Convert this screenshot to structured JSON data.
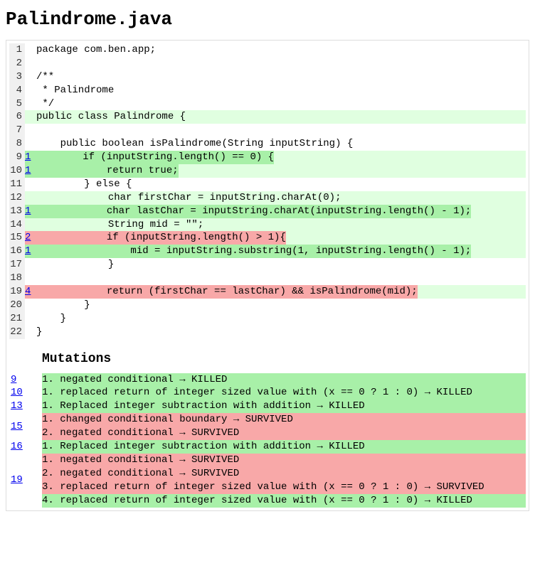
{
  "title": "Palindrome.java",
  "mutationsHeading": "Mutations",
  "colors": {
    "killedBg": "#a8f0a8",
    "survivedBg": "#f8a8a8",
    "coveredBg": "#e0ffe0",
    "noneBg": "#ffffff",
    "linenoBg": "#f0f0f0",
    "link": "#0000ee"
  },
  "codeLines": [
    {
      "n": 1,
      "mut": "",
      "bg": "none",
      "code": "package com.ben.app;"
    },
    {
      "n": 2,
      "mut": "",
      "bg": "none",
      "code": ""
    },
    {
      "n": 3,
      "mut": "",
      "bg": "none",
      "code": "/**"
    },
    {
      "n": 4,
      "mut": "",
      "bg": "none",
      "code": " * Palindrome"
    },
    {
      "n": 5,
      "mut": "",
      "bg": "none",
      "code": " */"
    },
    {
      "n": 6,
      "mut": "",
      "bg": "covered",
      "code": "public class Palindrome {"
    },
    {
      "n": 7,
      "mut": "",
      "bg": "none",
      "code": ""
    },
    {
      "n": 8,
      "mut": "",
      "bg": "none",
      "code": "    public boolean isPalindrome(String inputString) {"
    },
    {
      "n": 9,
      "mut": "1",
      "bg": "killed",
      "code": "        if (inputString.length() == 0) {"
    },
    {
      "n": 10,
      "mut": "1",
      "bg": "killed",
      "code": "            return true;"
    },
    {
      "n": 11,
      "mut": "",
      "bg": "none",
      "code": "        } else {"
    },
    {
      "n": 12,
      "mut": "",
      "bg": "covered",
      "code": "            char firstChar = inputString.charAt(0);"
    },
    {
      "n": 13,
      "mut": "1",
      "bg": "killed",
      "code": "            char lastChar = inputString.charAt(inputString.length() - 1);"
    },
    {
      "n": 14,
      "mut": "",
      "bg": "covered",
      "code": "            String mid = \"\";"
    },
    {
      "n": 15,
      "mut": "2",
      "bg": "survived",
      "code": "            if (inputString.length() > 1){"
    },
    {
      "n": 16,
      "mut": "1",
      "bg": "killed",
      "code": "                mid = inputString.substring(1, inputString.length() - 1);"
    },
    {
      "n": 17,
      "mut": "",
      "bg": "none",
      "code": "            }"
    },
    {
      "n": 18,
      "mut": "",
      "bg": "none",
      "code": ""
    },
    {
      "n": 19,
      "mut": "4",
      "bg": "survived",
      "code": "            return (firstChar == lastChar) && isPalindrome(mid);"
    },
    {
      "n": 20,
      "mut": "",
      "bg": "none",
      "code": "        }"
    },
    {
      "n": 21,
      "mut": "",
      "bg": "none",
      "code": "    }"
    },
    {
      "n": 22,
      "mut": "",
      "bg": "none",
      "code": "}"
    }
  ],
  "mutations": [
    {
      "line": "9",
      "items": [
        {
          "text": "1. negated conditional → KILLED",
          "status": "killed"
        }
      ]
    },
    {
      "line": "10",
      "items": [
        {
          "text": "1. replaced return of integer sized value with (x == 0 ? 1 : 0) → KILLED",
          "status": "killed"
        }
      ]
    },
    {
      "line": "13",
      "items": [
        {
          "text": "1. Replaced integer subtraction with addition → KILLED",
          "status": "killed"
        }
      ]
    },
    {
      "line": "15",
      "items": [
        {
          "text": "1. changed conditional boundary → SURVIVED",
          "status": "survived"
        },
        {
          "text": "2. negated conditional → SURVIVED",
          "status": "survived"
        }
      ]
    },
    {
      "line": "16",
      "items": [
        {
          "text": "1. Replaced integer subtraction with addition → KILLED",
          "status": "killed"
        }
      ]
    },
    {
      "line": "19",
      "items": [
        {
          "text": "1. negated conditional → SURVIVED",
          "status": "survived"
        },
        {
          "text": "2. negated conditional → SURVIVED",
          "status": "survived"
        },
        {
          "text": "3. replaced return of integer sized value with (x == 0 ? 1 : 0) → SURVIVED",
          "status": "survived"
        },
        {
          "text": "4. replaced return of integer sized value with (x == 0 ? 1 : 0) → KILLED",
          "status": "killed"
        }
      ]
    }
  ]
}
